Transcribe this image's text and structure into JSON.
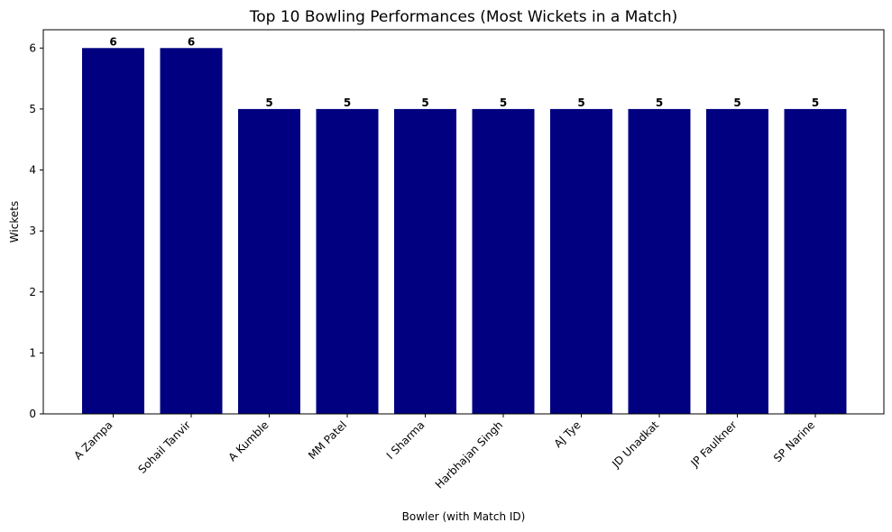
{
  "chart_data": {
    "type": "bar",
    "title": "Top 10 Bowling Performances (Most Wickets in a Match)",
    "xlabel": "Bowler (with Match ID)",
    "ylabel": "Wickets",
    "categories": [
      "A Zampa",
      "Sohail Tanvir",
      "A Kumble",
      "MM Patel",
      "I Sharma",
      "Harbhajan Singh",
      "AJ Tye",
      "JD Unadkat",
      "JP Faulkner",
      "SP Narine"
    ],
    "values": [
      6,
      6,
      5,
      5,
      5,
      5,
      5,
      5,
      5,
      5
    ],
    "data_labels": [
      "6",
      "6",
      "5",
      "5",
      "5",
      "5",
      "5",
      "5",
      "5",
      "5"
    ],
    "ylim": [
      0,
      6.3
    ],
    "yticks": [
      0,
      1,
      2,
      3,
      4,
      5,
      6
    ],
    "grid": false,
    "bar_color": "#000080"
  }
}
